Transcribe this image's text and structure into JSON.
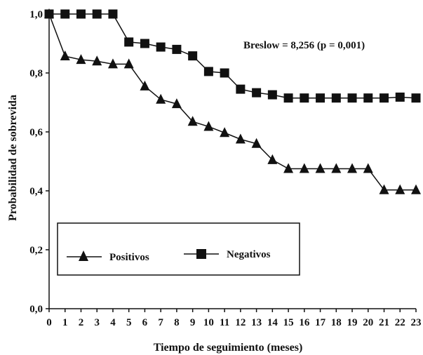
{
  "chart_data": {
    "type": "line",
    "xlabel": "Tiempo de seguimiento (meses)",
    "ylabel": "Probabilidad de sobrevida",
    "x": [
      0,
      1,
      2,
      3,
      4,
      5,
      6,
      7,
      8,
      9,
      10,
      11,
      12,
      13,
      14,
      15,
      16,
      17,
      18,
      19,
      20,
      21,
      22,
      23
    ],
    "x_tick_labels": [
      "0",
      "1",
      "2",
      "3",
      "4",
      "5",
      "6",
      "7",
      "8",
      "9",
      "10",
      "11",
      "12",
      "13",
      "14",
      "15",
      "16",
      "17",
      "18",
      "19",
      "20",
      "21",
      "22",
      "23"
    ],
    "y_ticks": [
      0.0,
      0.2,
      0.4,
      0.6,
      0.8,
      1.0
    ],
    "y_tick_labels": [
      "0,0",
      "0,2",
      "0,4",
      "0,6",
      "0,8",
      "1,0"
    ],
    "xlim": [
      0,
      23
    ],
    "ylim": [
      0,
      1.0
    ],
    "grid": false,
    "legend_position": "bottom-left",
    "annotation": "Breslow = 8,256 (p = 0,001)",
    "series": [
      {
        "name": "Positivos",
        "marker": "triangle",
        "color": "#111111",
        "values": [
          1.0,
          0.857,
          0.845,
          0.84,
          0.83,
          0.83,
          0.755,
          0.71,
          0.695,
          0.635,
          0.618,
          0.597,
          0.575,
          0.56,
          0.505,
          0.475,
          0.475,
          0.475,
          0.475,
          0.475,
          0.475,
          0.403,
          0.403,
          0.403
        ]
      },
      {
        "name": "Negativos",
        "marker": "square",
        "color": "#111111",
        "values": [
          1.0,
          1.0,
          1.0,
          1.0,
          1.0,
          0.905,
          0.9,
          0.888,
          0.88,
          0.858,
          0.805,
          0.8,
          0.745,
          0.733,
          0.726,
          0.715,
          0.715,
          0.715,
          0.715,
          0.715,
          0.715,
          0.715,
          0.718,
          0.715
        ]
      }
    ]
  }
}
